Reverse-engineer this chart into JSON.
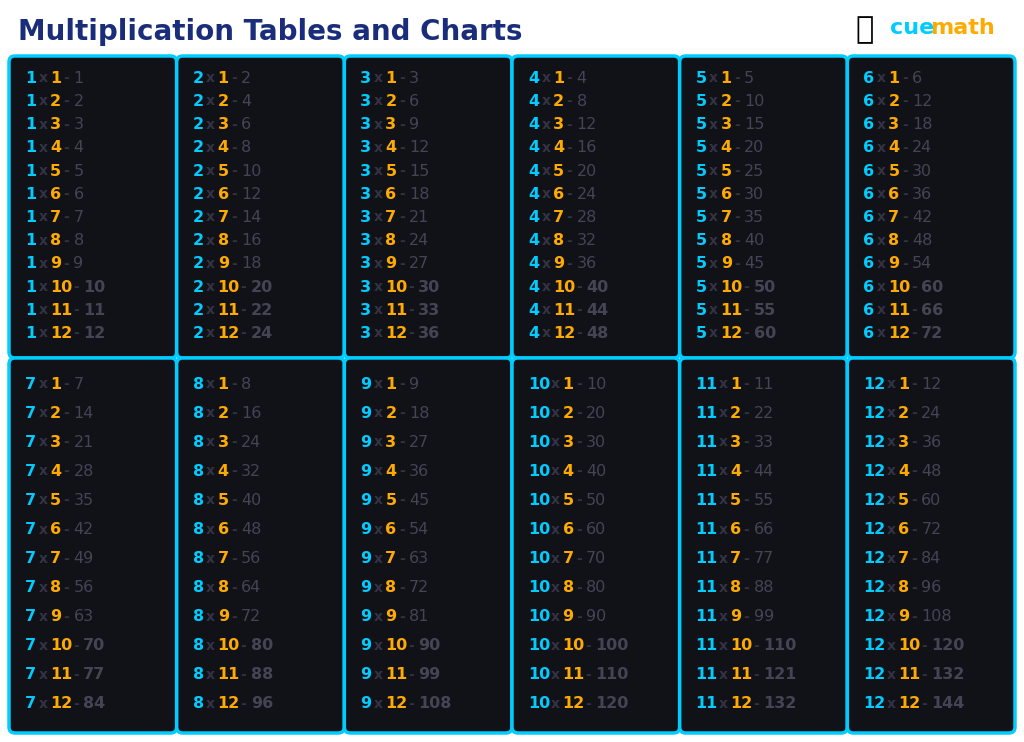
{
  "title": "Multiplication Tables and Charts",
  "background_color": "#ffffff",
  "title_color": "#1a2d7a",
  "box_fill_color": "#111118",
  "box_border_color": "#00ccff",
  "multiplier_color": "#00ccff",
  "multiplicand_color": "#ffaa00",
  "result_color": "#444455",
  "operator_color": "#333344",
  "tables": [
    1,
    2,
    3,
    4,
    5,
    6,
    7,
    8,
    9,
    10,
    11,
    12
  ],
  "max_multiplier": 12,
  "font_size_main": 11.5,
  "font_size_title": 20,
  "cue_color": "#00ccff",
  "math_color": "#ffaa00"
}
